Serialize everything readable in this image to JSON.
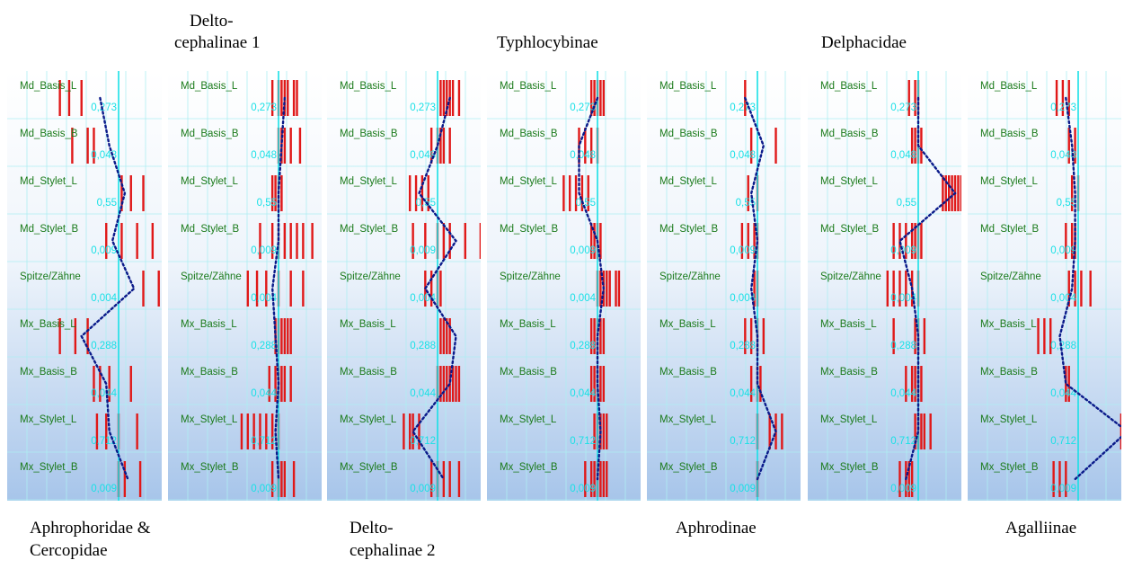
{
  "titles": {
    "aphrophoridae_line1": "Aphrophoridae &",
    "aphrophoridae_line2": "Cercopidae",
    "delto1_line1": "Delto-",
    "delto1_line2": "cephalinae 1",
    "delto2_line1": "Delto-",
    "delto2_line2": "cephalinae 2",
    "typhlocybinae": "Typhlocybinae",
    "aphrodinae": "Aphrodinae",
    "delphacidae": "Delphacidae",
    "agalliinae": "Agalliinae"
  },
  "colors": {
    "trait_label": "#1a7a1a",
    "value_label": "#19e0e6",
    "center_line": "#19e0e6",
    "grid": "#aeeef2",
    "bar": "#e01818",
    "profile": "#0a1a8a"
  },
  "chart_data": {
    "type": "profile",
    "traits": [
      "Md_Basis_L",
      "Md_Basis_B",
      "Md_Stylet_L",
      "Md_Stylet_B",
      "Spitze/Zähne",
      "Mx_Basis_L",
      "Mx_Basis_B",
      "Mx_Stylet_L",
      "Mx_Stylet_B"
    ],
    "reference_values": [
      "0,273",
      "0,048",
      "0,55",
      "0,009",
      "0,004",
      "0,288",
      "0,044",
      "0,712",
      "0,009"
    ],
    "value_scale": "relative deviation from reference (center line = 0)",
    "panels": [
      {
        "name": "Aphrophoridae & Cercopidae",
        "profile": [
          -0.3,
          -0.15,
          0.1,
          -0.1,
          0.25,
          -0.6,
          -0.2,
          -0.15,
          0.15
        ],
        "bars": [
          [
            -0.95,
            -0.8,
            -0.6
          ],
          [
            -0.75,
            -0.5,
            -0.4
          ],
          [
            0.05,
            0.2,
            0.4
          ],
          [
            -0.2,
            0.05,
            0.3,
            0.55
          ],
          [
            0.4,
            0.65,
            1.1
          ],
          [
            -0.95,
            -0.7,
            -0.5
          ],
          [
            -0.4,
            -0.3,
            -0.15,
            0.2
          ],
          [
            -0.35,
            -0.2,
            0.0,
            0.3
          ],
          [
            0.0,
            0.1,
            0.35
          ]
        ]
      },
      {
        "name": "Delto-cephalinae 1",
        "profile": [
          0.1,
          0.05,
          0.0,
          0.0,
          -0.1,
          -0.05,
          0.0,
          -0.05,
          0.0
        ],
        "bars": [
          [
            -0.1,
            0.0,
            0.05,
            0.1,
            0.15,
            0.25,
            0.3
          ],
          [
            0.0,
            0.05,
            0.1,
            0.2,
            0.35
          ],
          [
            -0.1,
            -0.05,
            0.0,
            0.05
          ],
          [
            -0.3,
            -0.1,
            0.0,
            0.1,
            0.2,
            0.3,
            0.4,
            0.55
          ],
          [
            -0.5,
            -0.35,
            -0.2,
            0.0,
            0.2,
            0.4
          ],
          [
            -0.05,
            0.0,
            0.05,
            0.1,
            0.15,
            0.2
          ],
          [
            -0.15,
            -0.05,
            0.0,
            0.05,
            0.1,
            0.2
          ],
          [
            -0.6,
            -0.5,
            -0.4,
            -0.3,
            -0.2,
            -0.1,
            0.0
          ],
          [
            -0.1,
            0.0,
            0.05,
            0.1,
            0.25
          ]
        ]
      },
      {
        "name": "Delto-cephalinae 2",
        "profile": [
          0.2,
          0.0,
          -0.3,
          0.3,
          -0.2,
          0.3,
          0.2,
          -0.4,
          0.1
        ],
        "bars": [
          [
            0.05,
            0.1,
            0.15,
            0.2,
            0.25,
            0.35
          ],
          [
            -0.1,
            0.0,
            0.05,
            0.1,
            0.2
          ],
          [
            -0.45,
            -0.35,
            -0.25,
            -0.15
          ],
          [
            -0.4,
            -0.2,
            0.0,
            0.1,
            0.2,
            0.45,
            0.7,
            0.95
          ],
          [
            -0.2,
            -0.1,
            0.0,
            0.05
          ],
          [
            0.05,
            0.1,
            0.15,
            0.2
          ],
          [
            0.0,
            0.05,
            0.1,
            0.15,
            0.2,
            0.25,
            0.3,
            0.35
          ],
          [
            -0.55,
            -0.45,
            -0.4,
            -0.3
          ],
          [
            -0.1,
            0.0,
            0.1,
            0.2,
            0.35
          ]
        ]
      },
      {
        "name": "Typhlocybinae",
        "profile": [
          0.0,
          -0.3,
          -0.3,
          0.0,
          0.1,
          0.0,
          0.0,
          0.05,
          0.0
        ],
        "bars": [
          [
            -0.1,
            -0.05,
            0.0,
            0.05,
            0.1
          ],
          [
            -0.3,
            -0.2,
            -0.1,
            0.0
          ],
          [
            -0.55,
            -0.45,
            -0.35,
            -0.25,
            -0.15
          ],
          [
            -0.1,
            -0.05,
            0.0,
            0.05
          ],
          [
            0.0,
            0.05,
            0.1,
            0.15,
            0.2,
            0.3,
            0.35
          ],
          [
            -0.1,
            -0.05,
            0.0,
            0.05,
            0.1
          ],
          [
            -0.1,
            -0.05,
            0.0,
            0.05,
            0.1
          ],
          [
            -0.05,
            0.0,
            0.05,
            0.1,
            0.15
          ],
          [
            -0.2,
            -0.1,
            -0.05,
            0.0,
            0.05,
            0.1,
            0.15
          ]
        ]
      },
      {
        "name": "Aphrodinae",
        "profile": [
          -0.2,
          0.1,
          -0.1,
          0.0,
          -0.1,
          0.0,
          0.0,
          0.3,
          0.0
        ],
        "bars": [
          [
            -0.2
          ],
          [
            -0.1,
            0.3
          ],
          [
            -0.15,
            0.0
          ],
          [
            -0.25,
            -0.15,
            -0.05,
            0.0
          ],
          [
            -0.05,
            0.0
          ],
          [
            -0.2,
            -0.1,
            0.0,
            0.1
          ],
          [
            -0.1,
            0.0,
            0.05
          ],
          [
            0.0,
            0.2,
            0.3,
            0.4
          ],
          [
            0.0
          ]
        ]
      },
      {
        "name": "Delphacidae",
        "profile": [
          0.0,
          0.0,
          0.6,
          -0.3,
          -0.1,
          0.0,
          0.0,
          0.0,
          -0.2
        ],
        "bars": [
          [
            -0.15,
            -0.05,
            0.0
          ],
          [
            -0.1,
            -0.05,
            0.0,
            0.05
          ],
          [
            0.4,
            0.45,
            0.5,
            0.55,
            0.6,
            0.65,
            0.7,
            0.75
          ],
          [
            -0.4,
            -0.3,
            -0.2,
            -0.1,
            -0.05,
            0.0,
            0.05
          ],
          [
            -0.5,
            -0.4,
            -0.3,
            -0.2,
            -0.1,
            0.0
          ],
          [
            -0.4,
            -0.05,
            0.0,
            0.1
          ],
          [
            -0.2,
            -0.1,
            -0.05,
            0.0,
            0.05
          ],
          [
            -0.05,
            0.0,
            0.05,
            0.1,
            0.2
          ],
          [
            -0.3,
            -0.2,
            -0.15,
            -0.1
          ]
        ]
      },
      {
        "name": "Agalliinae",
        "profile": [
          -0.2,
          -0.1,
          -0.05,
          -0.05,
          -0.1,
          -0.3,
          -0.2,
          0.8,
          -0.05
        ],
        "bars": [
          [
            -0.35,
            -0.25,
            -0.15
          ],
          [
            -0.15,
            -0.05
          ],
          [
            -0.1,
            0.0
          ],
          [
            -0.2,
            -0.1,
            -0.05
          ],
          [
            -0.15,
            -0.05,
            0.05,
            0.2
          ],
          [
            -0.65,
            -0.55,
            -0.45
          ],
          [
            -0.2,
            -0.15
          ],
          [
            0.7,
            0.8,
            0.9
          ],
          [
            -0.4,
            -0.3,
            -0.2
          ]
        ]
      }
    ]
  }
}
